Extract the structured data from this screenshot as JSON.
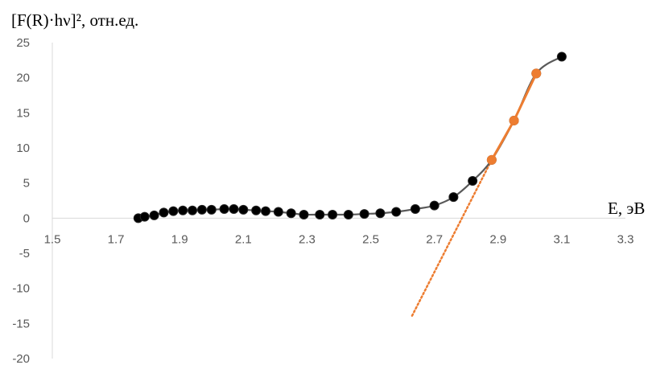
{
  "chart_data": {
    "type": "scatter",
    "title": "",
    "xlabel": "E, эВ",
    "ylabel": "[F(R)·hν]², отн.ед.",
    "xlim": [
      1.5,
      3.3
    ],
    "ylim": [
      -20,
      25
    ],
    "x_ticks": [
      "1.5",
      "1.7",
      "1.9",
      "2.1",
      "2.3",
      "2.5",
      "2.7",
      "2.9",
      "3.1",
      "3.3"
    ],
    "y_ticks": [
      "25",
      "20",
      "15",
      "10",
      "5",
      "0",
      "-5",
      "-10",
      "-15",
      "-20"
    ],
    "grid": false,
    "legend": "none",
    "series": [
      {
        "color": "#000000",
        "line_color": "#595959",
        "marker": "circle",
        "x": [
          1.77,
          1.79,
          1.82,
          1.85,
          1.88,
          1.91,
          1.94,
          1.97,
          2.0,
          2.04,
          2.07,
          2.1,
          2.14,
          2.17,
          2.21,
          2.25,
          2.29,
          2.34,
          2.38,
          2.43,
          2.48,
          2.53,
          2.58,
          2.64,
          2.7,
          2.76,
          2.82,
          2.88,
          2.95,
          3.02,
          3.1
        ],
        "y": [
          0.0,
          0.2,
          0.4,
          0.8,
          1.0,
          1.1,
          1.1,
          1.2,
          1.2,
          1.3,
          1.3,
          1.2,
          1.1,
          1.0,
          0.9,
          0.7,
          0.5,
          0.5,
          0.5,
          0.5,
          0.6,
          0.7,
          0.9,
          1.3,
          1.8,
          3.0,
          5.3,
          8.3,
          13.9,
          20.6,
          23.0
        ]
      },
      {
        "color": "#ED7D31",
        "marker": "circle",
        "x": [
          2.88,
          2.95,
          3.02
        ],
        "y": [
          8.3,
          13.9,
          20.6
        ]
      }
    ],
    "trendline": {
      "style": "dotted",
      "color": "#ED7D31",
      "x": [
        2.63,
        2.88
      ],
      "y": [
        -13.9,
        8.3
      ]
    }
  }
}
